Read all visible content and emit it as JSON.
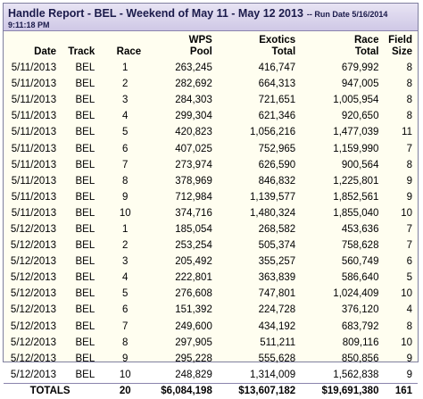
{
  "report": {
    "title": "Handle Report - BEL - Weekend of May 11 - May 12 2013",
    "run_date": "-- Run Date 5/16/2014",
    "run_time": "9:11:18 PM"
  },
  "columns": {
    "date": "Date",
    "track": "Track",
    "race": "Race",
    "wps_top": "WPS",
    "wps_bottom": "Pool",
    "exotics_top": "Exotics",
    "exotics_bottom": "Total",
    "race_total_top": "Race",
    "race_total_bottom": "Total",
    "field_top": "Field",
    "field_bottom": "Size"
  },
  "rows": [
    {
      "date": "5/11/2013",
      "track": "BEL",
      "race": "1",
      "wps": "263,245",
      "exotics": "416,747",
      "total": "679,992",
      "field": "8"
    },
    {
      "date": "5/11/2013",
      "track": "BEL",
      "race": "2",
      "wps": "282,692",
      "exotics": "664,313",
      "total": "947,005",
      "field": "8"
    },
    {
      "date": "5/11/2013",
      "track": "BEL",
      "race": "3",
      "wps": "284,303",
      "exotics": "721,651",
      "total": "1,005,954",
      "field": "8"
    },
    {
      "date": "5/11/2013",
      "track": "BEL",
      "race": "4",
      "wps": "299,304",
      "exotics": "621,346",
      "total": "920,650",
      "field": "8"
    },
    {
      "date": "5/11/2013",
      "track": "BEL",
      "race": "5",
      "wps": "420,823",
      "exotics": "1,056,216",
      "total": "1,477,039",
      "field": "11"
    },
    {
      "date": "5/11/2013",
      "track": "BEL",
      "race": "6",
      "wps": "407,025",
      "exotics": "752,965",
      "total": "1,159,990",
      "field": "7"
    },
    {
      "date": "5/11/2013",
      "track": "BEL",
      "race": "7",
      "wps": "273,974",
      "exotics": "626,590",
      "total": "900,564",
      "field": "8"
    },
    {
      "date": "5/11/2013",
      "track": "BEL",
      "race": "8",
      "wps": "378,969",
      "exotics": "846,832",
      "total": "1,225,801",
      "field": "9"
    },
    {
      "date": "5/11/2013",
      "track": "BEL",
      "race": "9",
      "wps": "712,984",
      "exotics": "1,139,577",
      "total": "1,852,561",
      "field": "9"
    },
    {
      "date": "5/11/2013",
      "track": "BEL",
      "race": "10",
      "wps": "374,716",
      "exotics": "1,480,324",
      "total": "1,855,040",
      "field": "10"
    },
    {
      "date": "5/12/2013",
      "track": "BEL",
      "race": "1",
      "wps": "185,054",
      "exotics": "268,582",
      "total": "453,636",
      "field": "7"
    },
    {
      "date": "5/12/2013",
      "track": "BEL",
      "race": "2",
      "wps": "253,254",
      "exotics": "505,374",
      "total": "758,628",
      "field": "7"
    },
    {
      "date": "5/12/2013",
      "track": "BEL",
      "race": "3",
      "wps": "205,492",
      "exotics": "355,257",
      "total": "560,749",
      "field": "6"
    },
    {
      "date": "5/12/2013",
      "track": "BEL",
      "race": "4",
      "wps": "222,801",
      "exotics": "363,839",
      "total": "586,640",
      "field": "5"
    },
    {
      "date": "5/12/2013",
      "track": "BEL",
      "race": "5",
      "wps": "276,608",
      "exotics": "747,801",
      "total": "1,024,409",
      "field": "10"
    },
    {
      "date": "5/12/2013",
      "track": "BEL",
      "race": "6",
      "wps": "151,392",
      "exotics": "224,728",
      "total": "376,120",
      "field": "4"
    },
    {
      "date": "5/12/2013",
      "track": "BEL",
      "race": "7",
      "wps": "249,600",
      "exotics": "434,192",
      "total": "683,792",
      "field": "8"
    },
    {
      "date": "5/12/2013",
      "track": "BEL",
      "race": "8",
      "wps": "297,905",
      "exotics": "511,211",
      "total": "809,116",
      "field": "10"
    },
    {
      "date": "5/12/2013",
      "track": "BEL",
      "race": "9",
      "wps": "295,228",
      "exotics": "555,628",
      "total": "850,856",
      "field": "9"
    },
    {
      "date": "5/12/2013",
      "track": "BEL",
      "race": "10",
      "wps": "248,829",
      "exotics": "1,314,009",
      "total": "1,562,838",
      "field": "9"
    }
  ],
  "totals": {
    "label": "TOTALS",
    "race": "20",
    "wps": "$6,084,198",
    "exotics": "$13,607,182",
    "total": "$19,691,380",
    "field": "161"
  }
}
